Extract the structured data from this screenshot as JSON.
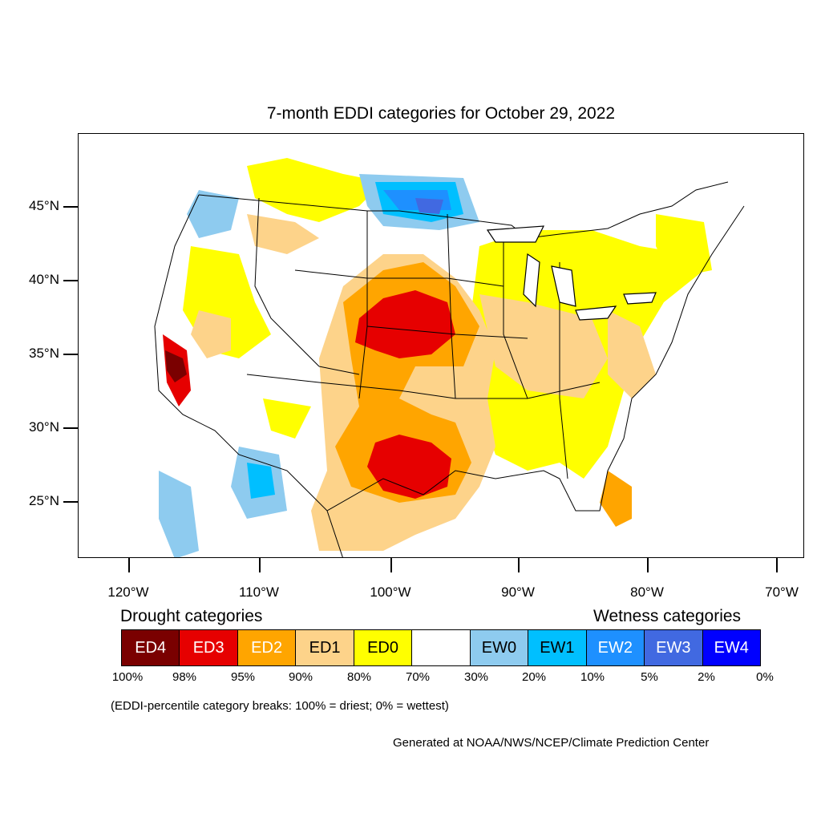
{
  "title": "7-month EDDI categories for October 29, 2022",
  "latitude_labels": [
    "45°N",
    "40°N",
    "35°N",
    "30°N",
    "25°N"
  ],
  "longitude_labels": [
    "120°W",
    "110°W",
    "100°W",
    "90°W",
    "80°W",
    "70°W"
  ],
  "legend": {
    "drought_heading": "Drought categories",
    "wetness_heading": "Wetness categories",
    "categories": [
      {
        "label": "ED4",
        "color": "#7a0000",
        "text_color": "#ffffff"
      },
      {
        "label": "ED3",
        "color": "#e60000",
        "text_color": "#ffffff"
      },
      {
        "label": "ED2",
        "color": "#ffa500",
        "text_color": "#ffffff"
      },
      {
        "label": "ED1",
        "color": "#fdd38a",
        "text_color": "#000000"
      },
      {
        "label": "ED0",
        "color": "#ffff00",
        "text_color": "#000000"
      },
      {
        "label": "",
        "color": "#ffffff",
        "text_color": "#000000"
      },
      {
        "label": "EW0",
        "color": "#8ecbef",
        "text_color": "#000000"
      },
      {
        "label": "EW1",
        "color": "#00bfff",
        "text_color": "#000000"
      },
      {
        "label": "EW2",
        "color": "#1e90ff",
        "text_color": "#ffffff"
      },
      {
        "label": "EW3",
        "color": "#4169e1",
        "text_color": "#ffffff"
      },
      {
        "label": "EW4",
        "color": "#0000ff",
        "text_color": "#ffffff"
      }
    ],
    "percent_breaks": [
      "100%",
      "98%",
      "95%",
      "90%",
      "80%",
      "70%",
      "30%",
      "20%",
      "10%",
      "5%",
      "2%",
      "0%"
    ]
  },
  "note": "(EDDI-percentile category breaks: 100% = driest; 0% = wettest)",
  "credit": "Generated at NOAA/NWS/NCEP/Climate Prediction Center"
}
